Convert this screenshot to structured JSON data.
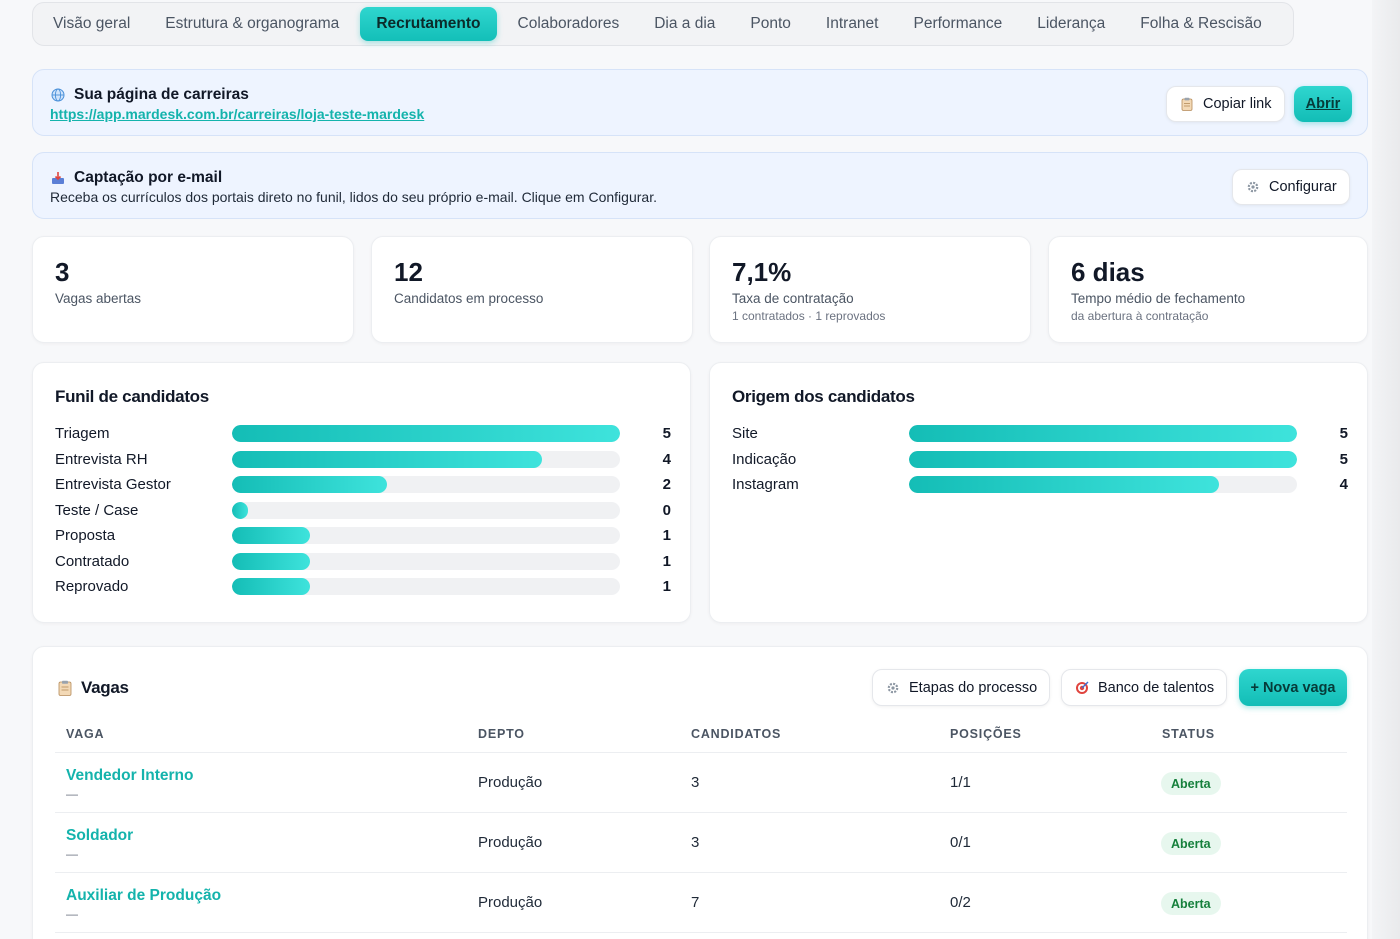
{
  "tabs": [
    {
      "label": "Visão geral",
      "active": false
    },
    {
      "label": "Estrutura & organograma",
      "active": false
    },
    {
      "label": "Recrutamento",
      "active": true
    },
    {
      "label": "Colaboradores",
      "active": false
    },
    {
      "label": "Dia a dia",
      "active": false
    },
    {
      "label": "Ponto",
      "active": false
    },
    {
      "label": "Intranet",
      "active": false
    },
    {
      "label": "Performance",
      "active": false
    },
    {
      "label": "Liderança",
      "active": false
    },
    {
      "label": "Folha & Rescisão",
      "active": false
    }
  ],
  "careers": {
    "title": "Sua página de carreiras",
    "url": "https://app.mardesk.com.br/carreiras/loja-teste-mardesk",
    "copy_label": "Copiar link",
    "open_label": "Abrir",
    "icon": "globe-icon"
  },
  "email_capture": {
    "title": "Captação por e-mail",
    "description": "Receba os currículos dos portais direto no funil, lidos do seu próprio e-mail. Clique em Configurar.",
    "configure_label": "Configurar",
    "icon": "inbox-tray-icon"
  },
  "stats": [
    {
      "value": "3",
      "label": "Vagas abertas",
      "sub": ""
    },
    {
      "value": "12",
      "label": "Candidatos em processo",
      "sub": ""
    },
    {
      "value": "7,1%",
      "label": "Taxa de contratação",
      "sub": "1 contratados · 1 reprovados"
    },
    {
      "value": "6 dias",
      "label": "Tempo médio de fechamento",
      "sub": "da abertura à contratação"
    }
  ],
  "funnel": {
    "title": "Funil de candidatos",
    "max": 5,
    "rows": [
      {
        "label": "Triagem",
        "value": 5
      },
      {
        "label": "Entrevista RH",
        "value": 4
      },
      {
        "label": "Entrevista Gestor",
        "value": 2
      },
      {
        "label": "Teste / Case",
        "value": 0
      },
      {
        "label": "Proposta",
        "value": 1
      },
      {
        "label": "Contratado",
        "value": 1
      },
      {
        "label": "Reprovado",
        "value": 1
      }
    ]
  },
  "origin": {
    "title": "Origem dos candidatos",
    "max": 5,
    "rows": [
      {
        "label": "Site",
        "value": 5
      },
      {
        "label": "Indicação",
        "value": 5
      },
      {
        "label": "Instagram",
        "value": 4
      }
    ]
  },
  "vagas": {
    "title": "Vagas",
    "stages_label": "Etapas do processo",
    "talent_label": "Banco de talentos",
    "new_label": "+ Nova vaga",
    "columns": [
      "VAGA",
      "DEPTO",
      "CANDIDATOS",
      "POSIÇÕES",
      "STATUS"
    ],
    "rows": [
      {
        "name": "Vendedor Interno",
        "sub": "—",
        "dept": "Produção",
        "candidates": "3",
        "positions": "1/1",
        "status": "Aberta"
      },
      {
        "name": "Soldador",
        "sub": "—",
        "dept": "Produção",
        "candidates": "3",
        "positions": "0/1",
        "status": "Aberta"
      },
      {
        "name": "Auxiliar de Produção",
        "sub": "—",
        "dept": "Produção",
        "candidates": "7",
        "positions": "0/2",
        "status": "Aberta"
      }
    ]
  },
  "colors": {
    "accent": "#14bdb6",
    "status_green": "#16803c",
    "banner_bg": "#eef4ff"
  }
}
